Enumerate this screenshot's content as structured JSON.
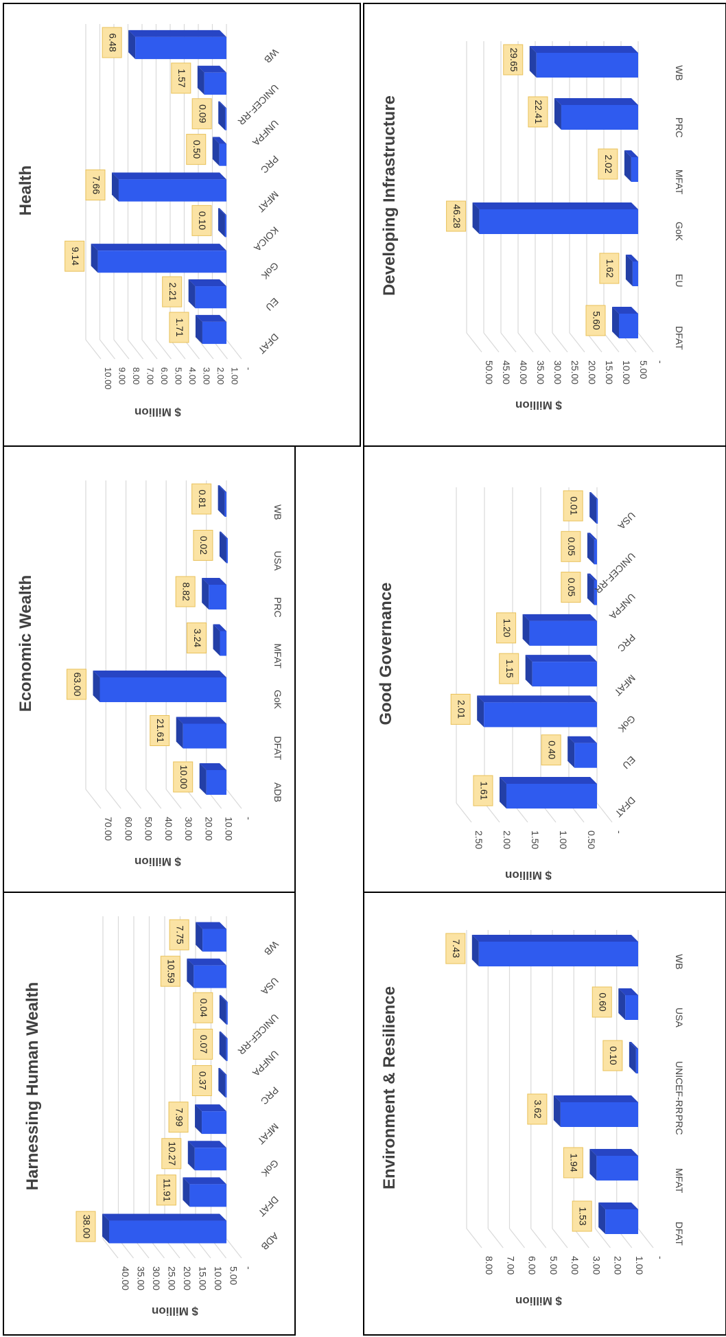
{
  "colors": {
    "bar_front": "#2f5bef",
    "bar_side": "#233fa6",
    "bar_top": "#2745c4",
    "label_fill": "#fbe3a4",
    "label_stroke": "#e8c15a",
    "grid": "#d9d9d9",
    "text": "#444444"
  },
  "chart_data": [
    {
      "type": "bar",
      "title": "Harnessing Human Wealth",
      "ylabel": "$ Million",
      "categories": [
        "ADB",
        "DFAT",
        "GoK",
        "MFAT",
        "PRC",
        "UNFPA",
        "UNICEF-RR",
        "USA",
        "WB"
      ],
      "values": [
        38.0,
        11.91,
        10.27,
        7.99,
        0.37,
        0.07,
        0.04,
        10.59,
        7.75
      ],
      "value_labels": [
        "38.00",
        "11.91",
        "10.27",
        "7.99",
        "0.37",
        "0.07",
        "0.04",
        "10.59",
        "7.75"
      ],
      "ylim": [
        0,
        40
      ],
      "ticks": [
        "-",
        "5.00",
        "10.00",
        "15.00",
        "20.00",
        "25.00",
        "30.00",
        "35.00",
        "40.00"
      ],
      "grid": true
    },
    {
      "type": "bar",
      "title": "Economic Wealth",
      "ylabel": "$ Million",
      "categories": [
        "ADB",
        "DFAT",
        "GoK",
        "MFAT",
        "PRC",
        "USA",
        "WB"
      ],
      "values": [
        10.0,
        21.61,
        63.0,
        3.24,
        8.82,
        0.02,
        0.81
      ],
      "value_labels": [
        "10.00",
        "21.61",
        "63.00",
        "3.24",
        "8.82",
        "0.02",
        "0.81"
      ],
      "ylim": [
        0,
        70
      ],
      "ticks": [
        "-",
        "10.00",
        "20.00",
        "30.00",
        "40.00",
        "50.00",
        "60.00",
        "70.00"
      ],
      "grid": true
    },
    {
      "type": "bar",
      "title": "Health",
      "ylabel": "$ Million",
      "categories": [
        "DFAT",
        "EU",
        "GoK",
        "KOICA",
        "MFAT",
        "PRC",
        "UNFPA",
        "UNICEF-RR",
        "WB"
      ],
      "values": [
        1.71,
        2.21,
        9.14,
        0.1,
        7.66,
        0.5,
        0.09,
        1.57,
        6.48
      ],
      "value_labels": [
        "1.71",
        "2.21",
        "9.14",
        "0.10",
        "7.66",
        "0.50",
        "0.09",
        "1.57",
        "6.48"
      ],
      "ylim": [
        0,
        10
      ],
      "ticks": [
        "-",
        "1.00",
        "2.00",
        "3.00",
        "4.00",
        "5.00",
        "6.00",
        "7.00",
        "8.00",
        "9.00",
        "10.00"
      ],
      "grid": true
    },
    {
      "type": "bar",
      "title": "Environment & Resilience",
      "ylabel": "$ Million",
      "categories": [
        "DFAT",
        "MFAT",
        "PRC",
        "UNICEF-RR",
        "USA",
        "WB"
      ],
      "values": [
        1.53,
        1.94,
        3.62,
        0.1,
        0.6,
        7.43
      ],
      "value_labels": [
        "1.53",
        "1.94",
        "3.62",
        "0.10",
        "0.60",
        "7.43"
      ],
      "ylim": [
        0,
        8
      ],
      "ticks": [
        "-",
        "1.00",
        "2.00",
        "3.00",
        "4.00",
        "5.00",
        "6.00",
        "7.00",
        "8.00"
      ],
      "grid": true
    },
    {
      "type": "bar",
      "title": "Good Governance",
      "ylabel": "$ Million",
      "categories": [
        "DFAT",
        "EU",
        "GoK",
        "MFAT",
        "PRC",
        "UNFPA",
        "UNICEF-RR",
        "USA"
      ],
      "values": [
        1.61,
        0.4,
        2.01,
        1.15,
        1.2,
        0.05,
        0.05,
        0.01
      ],
      "value_labels": [
        "1.61",
        "0.40",
        "2.01",
        "1.15",
        "1.20",
        "0.05",
        "0.05",
        "0.01"
      ],
      "ylim": [
        0,
        2.5
      ],
      "ticks": [
        "-",
        "0.50",
        "1.00",
        "1.50",
        "2.00",
        "2.50"
      ],
      "grid": true
    },
    {
      "type": "bar",
      "title": "Developing Infrastructure",
      "ylabel": "$ Million",
      "categories": [
        "DFAT",
        "EU",
        "GoK",
        "MFAT",
        "PRC",
        "WB"
      ],
      "values": [
        5.6,
        1.62,
        46.28,
        2.02,
        22.41,
        29.65
      ],
      "value_labels": [
        "5.60",
        "1.62",
        "46.28",
        "2.02",
        "22.41",
        "29.65"
      ],
      "ylim": [
        0,
        50
      ],
      "ticks": [
        "-",
        "5.00",
        "10.00",
        "15.00",
        "20.00",
        "25.00",
        "30.00",
        "35.00",
        "40.00",
        "45.00",
        "50.00"
      ],
      "grid": true
    }
  ]
}
